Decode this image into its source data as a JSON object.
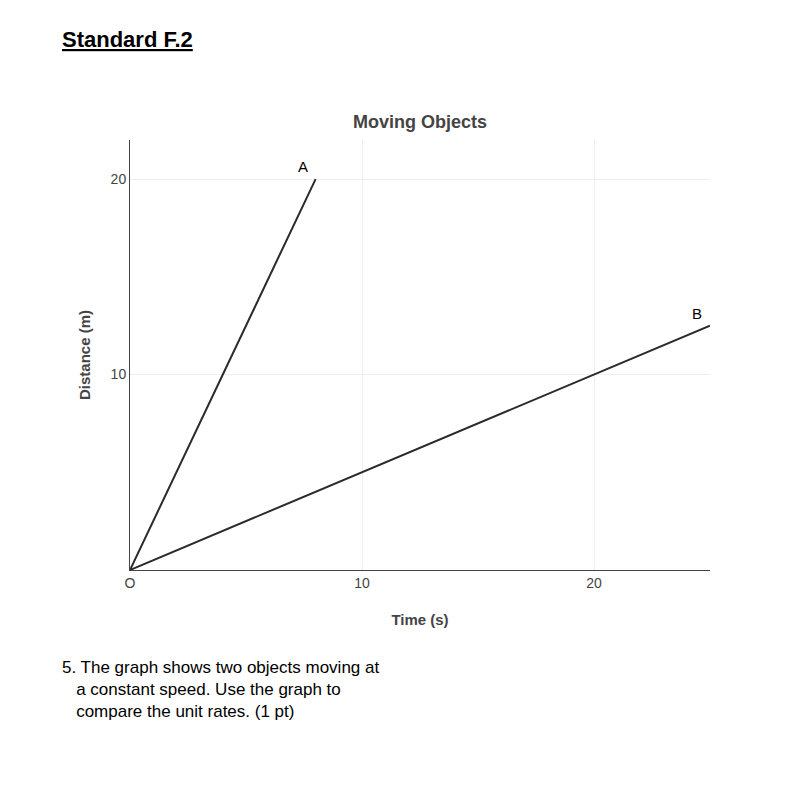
{
  "chart_data": {
    "type": "line",
    "title": "Moving Objects",
    "xlabel": "Time (s)",
    "ylabel": "Distance (m)",
    "series": [
      {
        "name": "A",
        "x": [
          0,
          8
        ],
        "values": [
          0,
          20
        ]
      },
      {
        "name": "B",
        "x": [
          0,
          25
        ],
        "values": [
          0,
          12.5
        ]
      }
    ],
    "color": "#2a2a2a",
    "xlim": [
      0,
      25
    ],
    "ylim": [
      0,
      22
    ],
    "xticks": [
      {
        "value": 0,
        "label": "O"
      },
      10,
      20
    ],
    "yticks": [
      10,
      20
    ],
    "grid": true,
    "annotations": [
      "Standard F.2",
      "5. The graph shows two objects moving at\n   a constant speed. Use the graph to\n   compare the unit rates. (1 pt)"
    ]
  }
}
